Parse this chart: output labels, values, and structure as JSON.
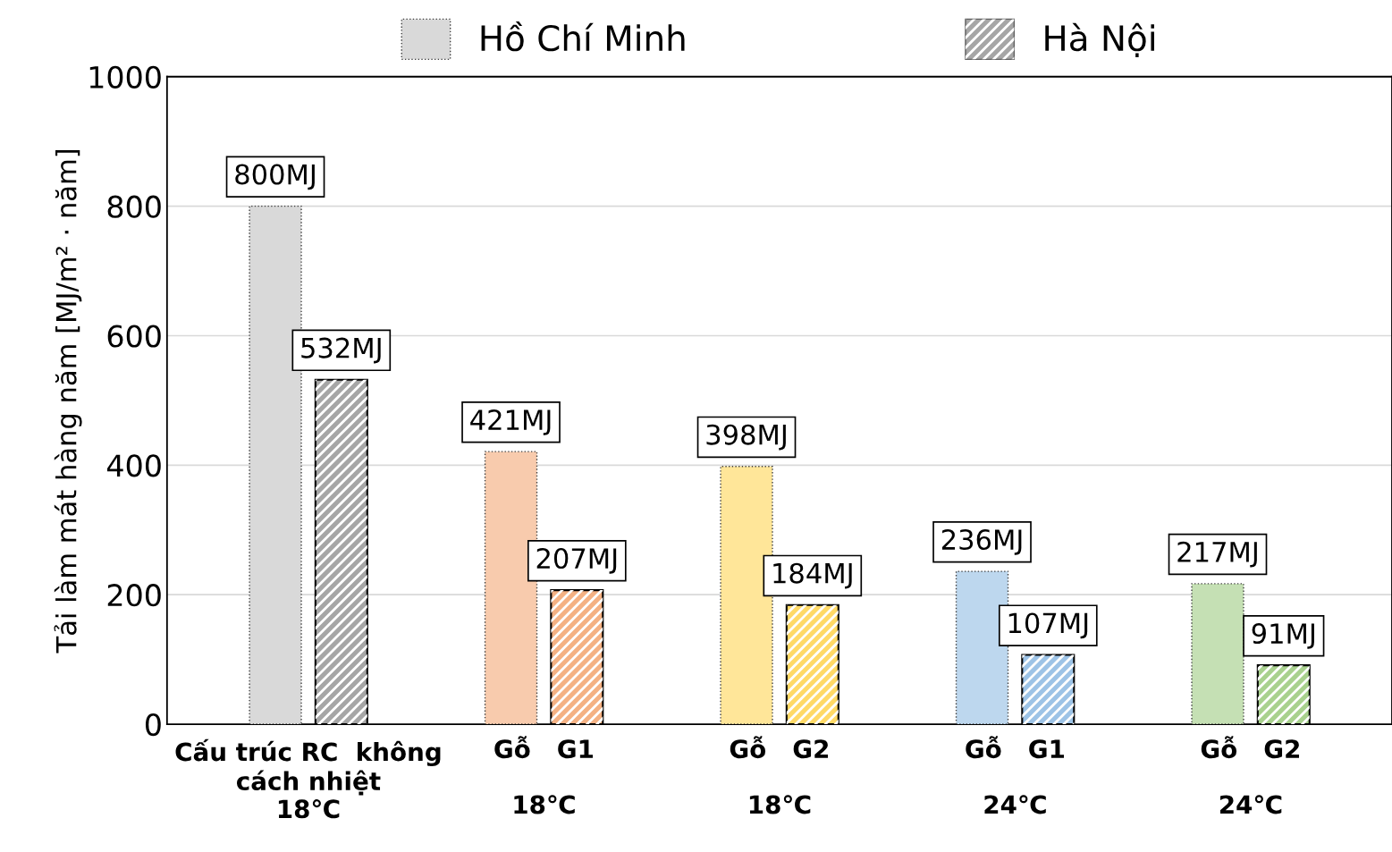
{
  "chart_data": {
    "type": "bar",
    "categories": [
      "Cấu trúc RC  không\ncách nhiệt\n18℃",
      "Gỗ   G1\n\n18℃",
      "Gỗ   G2\n\n18℃",
      "Gỗ   G1\n\n24℃",
      "Gỗ   G2\n\n24℃"
    ],
    "series": [
      {
        "name": "Hồ Chí Minh",
        "colors": [
          "#d9d9d9",
          "#f8cbad",
          "#ffe699",
          "#bdd7ee",
          "#c5e0b4"
        ],
        "values": [
          800,
          421,
          398,
          236,
          217
        ],
        "value_labels": [
          "800MJ",
          "421MJ",
          "398MJ",
          "236MJ",
          "217MJ"
        ]
      },
      {
        "name": "Hà Nội",
        "colors": [
          "#a6a6a6",
          "#f4b183",
          "#ffd966",
          "#9dc3e6",
          "#a9d18e"
        ],
        "values": [
          532,
          207,
          184,
          107,
          91
        ],
        "value_labels": [
          "532MJ",
          "207MJ",
          "184MJ",
          "107MJ",
          "91MJ"
        ]
      }
    ],
    "ylabel": "Tải làm mát hàng năm [MJ/m² · năm]",
    "ylim": [
      0,
      1000
    ],
    "yticks": [
      0,
      200,
      400,
      600,
      800,
      1000
    ],
    "grid": "y",
    "legend": "top"
  }
}
